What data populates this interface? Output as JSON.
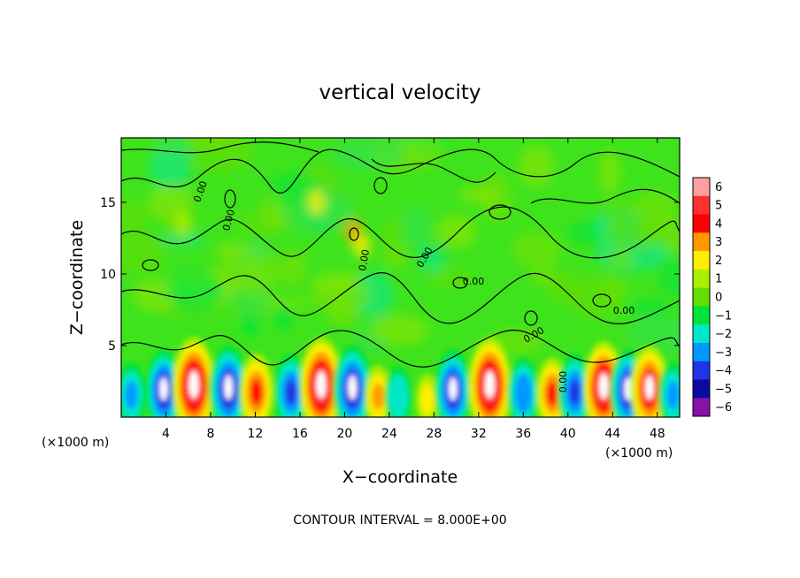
{
  "chart_data": {
    "type": "heatmap",
    "title": "vertical velocity",
    "xlabel": "X−coordinate",
    "ylabel": "Z−coordinate",
    "x_unit_left": "(×1000 m)",
    "x_unit_right": "(×1000 m)",
    "footnote": "CONTOUR INTERVAL = 8.000E+00",
    "xlim": [
      0,
      50
    ],
    "ylim": [
      0,
      19.5
    ],
    "x_ticks": [
      4,
      8,
      12,
      16,
      20,
      24,
      28,
      32,
      36,
      40,
      44,
      48
    ],
    "y_ticks": [
      5,
      10,
      15
    ],
    "colorbar": {
      "levels": [
        "6",
        "5",
        "4",
        "3",
        "2",
        "1",
        "0",
        "−1",
        "−2",
        "−3",
        "−4",
        "−5",
        "−6"
      ],
      "colors": [
        "#ff9f9f",
        "#ff3030",
        "#ff0000",
        "#ff9900",
        "#ffee00",
        "#aaee00",
        "#66dd00",
        "#00e33a",
        "#00e8c8",
        "#0099ff",
        "#1f35e6",
        "#0a0a9e",
        "#8811aa"
      ]
    },
    "background_value": 0,
    "contour_labels": [
      "0.00",
      "0.00",
      "0.00",
      "0.00",
      "0.00",
      "0.00",
      "0.00",
      "0.00"
    ],
    "cells": [
      {
        "x": 0.9,
        "value": -3,
        "kind": "down"
      },
      {
        "x": 3.8,
        "value": -4.5,
        "kind": "down"
      },
      {
        "x": 6.5,
        "value": 6,
        "kind": "up"
      },
      {
        "x": 9.6,
        "value": -5,
        "kind": "down"
      },
      {
        "x": 12.1,
        "value": 4,
        "kind": "up"
      },
      {
        "x": 15.2,
        "value": -4,
        "kind": "down"
      },
      {
        "x": 17.9,
        "value": 6,
        "kind": "up"
      },
      {
        "x": 20.7,
        "value": -5,
        "kind": "down"
      },
      {
        "x": 23.0,
        "value": 2.5,
        "kind": "up"
      },
      {
        "x": 24.8,
        "value": -2.5,
        "kind": "down"
      },
      {
        "x": 27.4,
        "value": 1.5,
        "kind": "up"
      },
      {
        "x": 29.7,
        "value": -4.5,
        "kind": "down"
      },
      {
        "x": 33.0,
        "value": 6,
        "kind": "up"
      },
      {
        "x": 36.0,
        "value": -3.5,
        "kind": "down"
      },
      {
        "x": 38.6,
        "value": 3.5,
        "kind": "up"
      },
      {
        "x": 40.6,
        "value": -4,
        "kind": "down"
      },
      {
        "x": 43.2,
        "value": 5.5,
        "kind": "up"
      },
      {
        "x": 45.4,
        "value": -4.5,
        "kind": "down"
      },
      {
        "x": 47.3,
        "value": 5,
        "kind": "up"
      },
      {
        "x": 49.4,
        "value": -3,
        "kind": "down"
      }
    ]
  }
}
